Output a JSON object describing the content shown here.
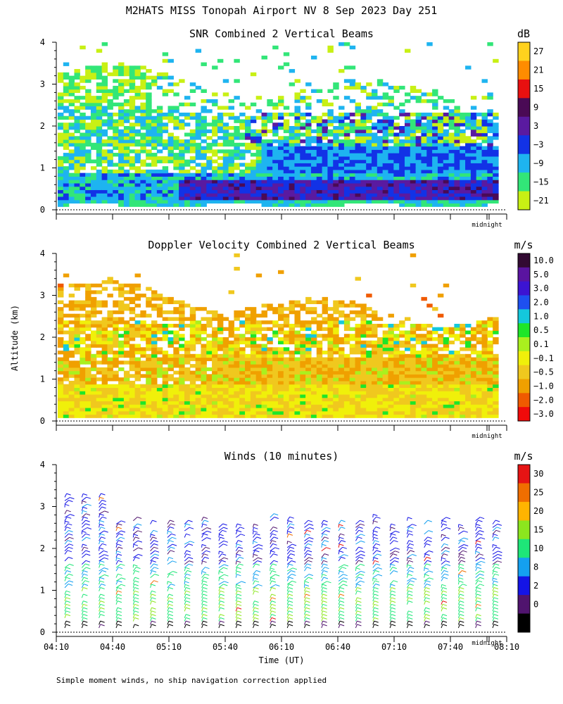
{
  "main_title": "M2HATS MISS Tonopah Airport NV   8 Sep 2023 Day 251",
  "y_axis_label": "Altitude (km)",
  "x_axis_label": "Time (UT)",
  "footer_note": "Simple moment winds, no ship navigation correction applied",
  "midnight_label": "midnight",
  "chart_data": [
    {
      "type": "heatmap",
      "title": "SNR Combined 2 Vertical Beams",
      "units": "dB",
      "xlabel": "",
      "ylabel": "Altitude (km)",
      "ylim": [
        0,
        4
      ],
      "yticks": [
        "0",
        "1",
        "2",
        "3",
        "4"
      ],
      "colorbar_labels": [
        "27",
        "21",
        "15",
        "9",
        "3",
        "−3",
        "−9",
        "−15",
        "−21"
      ],
      "colorbar_colors": [
        "#ffd21e",
        "#ff8c00",
        "#e81010",
        "#4a0a55",
        "#5a1aa0",
        "#1232e6",
        "#1eb4f0",
        "#32e678",
        "#c8f014"
      ]
    },
    {
      "type": "heatmap",
      "title": "Doppler Velocity Combined 2 Vertical Beams",
      "units": "m/s",
      "xlabel": "",
      "ylabel": "Altitude (km)",
      "ylim": [
        0,
        4
      ],
      "yticks": [
        "0",
        "1",
        "2",
        "3",
        "4"
      ],
      "colorbar_labels": [
        "10.0",
        "5.0",
        "3.0",
        "2.0",
        "1.0",
        "0.5",
        "0.1",
        "−0.1",
        "−0.5",
        "−1.0",
        "−2.0",
        "−3.0"
      ],
      "colorbar_colors": [
        "#320a32",
        "#5a14a0",
        "#3c14d2",
        "#1e50f0",
        "#14c8dc",
        "#1ee628",
        "#aaf01e",
        "#f0f00a",
        "#f0c81e",
        "#f0a000",
        "#f05a00",
        "#f00a0a"
      ]
    },
    {
      "type": "barbs",
      "title": "Winds (10 minutes)",
      "units": "m/s",
      "xlabel": "Time (UT)",
      "ylabel": "Altitude (km)",
      "ylim": [
        0,
        4
      ],
      "yticks": [
        "0",
        "1",
        "2",
        "3",
        "4"
      ],
      "xticks": [
        "04:10",
        "04:40",
        "05:10",
        "05:40",
        "06:10",
        "06:40",
        "07:10",
        "07:40",
        "08:10"
      ],
      "colorbar_labels": [
        "30",
        "25",
        "20",
        "15",
        "10",
        "8",
        "2",
        "0"
      ],
      "colorbar_colors": [
        "#e61414",
        "#f06e00",
        "#ffb400",
        "#8ce61e",
        "#1ee678",
        "#14a0f0",
        "#1414e6",
        "#50146e",
        "#000000"
      ]
    }
  ]
}
